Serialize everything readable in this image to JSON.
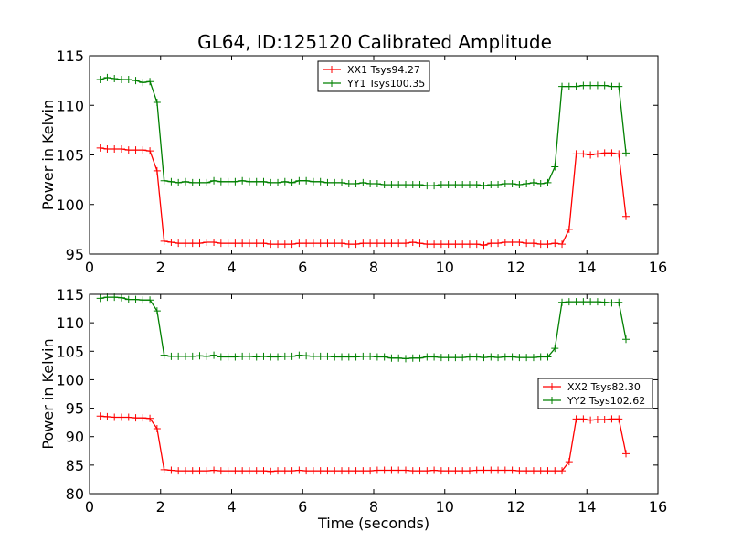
{
  "chart_data": [
    {
      "type": "line",
      "title": "GL64, ID:125120 Calibrated Amplitude",
      "xlabel": "",
      "ylabel": "Power in Kelvin",
      "xlim": [
        0,
        16
      ],
      "ylim": [
        95,
        115
      ],
      "xticks": [
        0,
        2,
        4,
        6,
        8,
        10,
        12,
        14,
        16
      ],
      "yticks": [
        95,
        100,
        105,
        110,
        115
      ],
      "grid": false,
      "legend_position": "top-center",
      "x": [
        0.3,
        0.5,
        0.7,
        0.9,
        1.1,
        1.3,
        1.5,
        1.7,
        1.9,
        2.1,
        2.3,
        2.5,
        2.7,
        2.9,
        3.1,
        3.3,
        3.5,
        3.7,
        3.9,
        4.1,
        4.3,
        4.5,
        4.7,
        4.9,
        5.1,
        5.3,
        5.5,
        5.7,
        5.9,
        6.1,
        6.3,
        6.5,
        6.7,
        6.9,
        7.1,
        7.3,
        7.5,
        7.7,
        7.9,
        8.1,
        8.3,
        8.5,
        8.7,
        8.9,
        9.1,
        9.3,
        9.5,
        9.7,
        9.9,
        10.1,
        10.3,
        10.5,
        10.7,
        10.9,
        11.1,
        11.3,
        11.5,
        11.7,
        11.9,
        12.1,
        12.3,
        12.5,
        12.7,
        12.9,
        13.1,
        13.3,
        13.5,
        13.7,
        13.9,
        14.1,
        14.3,
        14.5,
        14.7,
        14.9,
        15.1
      ],
      "series": [
        {
          "name": "XX1 Tsys94.27",
          "color": "#ff0000",
          "values": [
            105.7,
            105.6,
            105.6,
            105.6,
            105.5,
            105.5,
            105.5,
            105.4,
            103.4,
            96.3,
            96.2,
            96.1,
            96.1,
            96.1,
            96.1,
            96.2,
            96.2,
            96.1,
            96.1,
            96.1,
            96.1,
            96.1,
            96.1,
            96.1,
            96.0,
            96.0,
            96.0,
            96.0,
            96.1,
            96.1,
            96.1,
            96.1,
            96.1,
            96.1,
            96.1,
            96.0,
            96.0,
            96.1,
            96.1,
            96.1,
            96.1,
            96.1,
            96.1,
            96.1,
            96.2,
            96.1,
            96.0,
            96.0,
            96.0,
            96.0,
            96.0,
            96.0,
            96.0,
            96.0,
            95.9,
            96.1,
            96.1,
            96.2,
            96.2,
            96.2,
            96.1,
            96.1,
            96.0,
            96.0,
            96.1,
            96.0,
            97.5,
            105.1,
            105.1,
            105.0,
            105.1,
            105.2,
            105.2,
            105.1,
            98.8
          ]
        },
        {
          "name": "YY1 Tsys100.35",
          "color": "#008000",
          "values": [
            112.6,
            112.8,
            112.7,
            112.6,
            112.6,
            112.5,
            112.3,
            112.4,
            110.3,
            102.4,
            102.3,
            102.2,
            102.3,
            102.2,
            102.2,
            102.2,
            102.4,
            102.3,
            102.3,
            102.3,
            102.4,
            102.3,
            102.3,
            102.3,
            102.2,
            102.2,
            102.3,
            102.2,
            102.4,
            102.4,
            102.3,
            102.3,
            102.2,
            102.2,
            102.2,
            102.1,
            102.1,
            102.2,
            102.1,
            102.1,
            102.0,
            102.0,
            102.0,
            102.0,
            102.0,
            102.0,
            101.9,
            101.9,
            102.0,
            102.0,
            102.0,
            102.0,
            102.0,
            102.0,
            101.9,
            102.0,
            102.0,
            102.1,
            102.1,
            102.0,
            102.1,
            102.2,
            102.1,
            102.2,
            103.8,
            111.9,
            111.9,
            111.9,
            112.0,
            112.0,
            112.0,
            112.0,
            111.9,
            111.9,
            105.2
          ]
        }
      ]
    },
    {
      "type": "line",
      "title": "",
      "xlabel": "Time (seconds)",
      "ylabel": "Power in Kelvin",
      "xlim": [
        0,
        16
      ],
      "ylim": [
        80,
        115
      ],
      "xticks": [
        0,
        2,
        4,
        6,
        8,
        10,
        12,
        14,
        16
      ],
      "yticks": [
        80,
        85,
        90,
        95,
        100,
        105,
        110,
        115
      ],
      "grid": false,
      "legend_position": "center-right",
      "x": [
        0.3,
        0.5,
        0.7,
        0.9,
        1.1,
        1.3,
        1.5,
        1.7,
        1.9,
        2.1,
        2.3,
        2.5,
        2.7,
        2.9,
        3.1,
        3.3,
        3.5,
        3.7,
        3.9,
        4.1,
        4.3,
        4.5,
        4.7,
        4.9,
        5.1,
        5.3,
        5.5,
        5.7,
        5.9,
        6.1,
        6.3,
        6.5,
        6.7,
        6.9,
        7.1,
        7.3,
        7.5,
        7.7,
        7.9,
        8.1,
        8.3,
        8.5,
        8.7,
        8.9,
        9.1,
        9.3,
        9.5,
        9.7,
        9.9,
        10.1,
        10.3,
        10.5,
        10.7,
        10.9,
        11.1,
        11.3,
        11.5,
        11.7,
        11.9,
        12.1,
        12.3,
        12.5,
        12.7,
        12.9,
        13.1,
        13.3,
        13.5,
        13.7,
        13.9,
        14.1,
        14.3,
        14.5,
        14.7,
        14.9,
        15.1
      ],
      "series": [
        {
          "name": "XX2 Tsys82.30",
          "color": "#ff0000",
          "values": [
            93.6,
            93.5,
            93.4,
            93.4,
            93.4,
            93.3,
            93.3,
            93.2,
            91.4,
            84.2,
            84.1,
            84.0,
            84.0,
            84.0,
            84.0,
            84.0,
            84.1,
            84.0,
            84.0,
            84.0,
            84.0,
            84.0,
            84.0,
            84.0,
            83.9,
            84.0,
            84.0,
            84.0,
            84.1,
            84.0,
            84.0,
            84.0,
            84.0,
            84.0,
            84.0,
            84.0,
            84.0,
            84.0,
            84.0,
            84.1,
            84.1,
            84.1,
            84.1,
            84.1,
            84.0,
            84.0,
            84.0,
            84.1,
            84.0,
            84.0,
            84.0,
            84.0,
            84.0,
            84.1,
            84.1,
            84.1,
            84.1,
            84.1,
            84.1,
            84.0,
            84.0,
            84.0,
            84.0,
            84.0,
            84.0,
            84.0,
            85.6,
            93.1,
            93.1,
            92.9,
            93.0,
            93.0,
            93.1,
            93.1,
            87.0
          ]
        },
        {
          "name": "YY2 Tsys102.62",
          "color": "#008000",
          "values": [
            114.3,
            114.5,
            114.5,
            114.4,
            114.1,
            114.1,
            114.0,
            114.0,
            112.1,
            104.3,
            104.1,
            104.1,
            104.1,
            104.1,
            104.2,
            104.1,
            104.3,
            104.0,
            104.0,
            104.0,
            104.1,
            104.1,
            104.0,
            104.1,
            104.0,
            104.0,
            104.1,
            104.1,
            104.3,
            104.2,
            104.1,
            104.1,
            104.1,
            104.0,
            104.0,
            104.0,
            104.0,
            104.1,
            104.1,
            104.0,
            104.0,
            103.8,
            103.8,
            103.7,
            103.8,
            103.8,
            104.0,
            104.0,
            103.9,
            103.9,
            103.9,
            103.9,
            104.0,
            104.0,
            103.9,
            104.0,
            103.9,
            104.0,
            104.0,
            103.9,
            103.9,
            103.9,
            104.0,
            104.0,
            105.5,
            113.6,
            113.7,
            113.7,
            113.7,
            113.7,
            113.7,
            113.6,
            113.5,
            113.6,
            107.1
          ]
        }
      ]
    }
  ]
}
